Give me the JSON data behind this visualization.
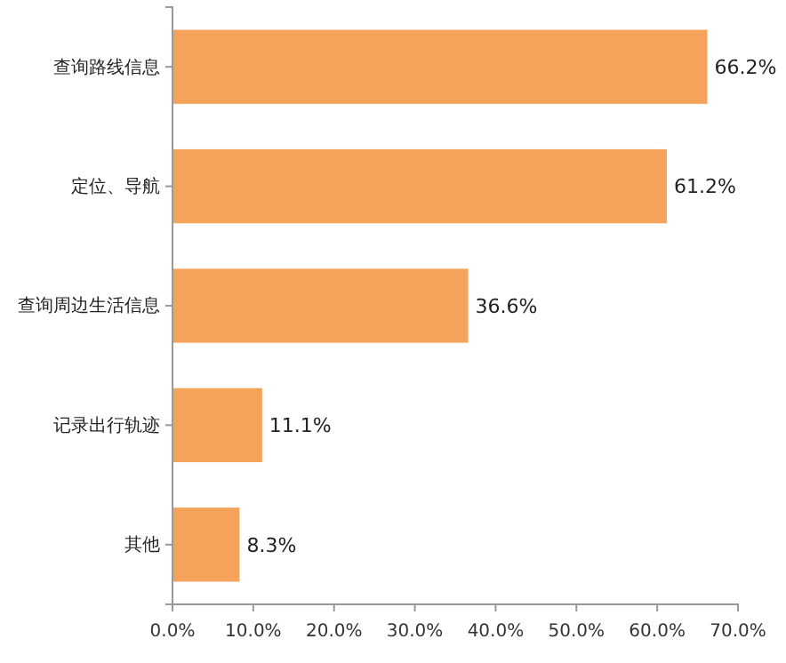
{
  "chart_data": {
    "type": "bar",
    "orientation": "horizontal",
    "categories": [
      "查询路线信息",
      "定位、导航",
      "查询周边生活信息",
      "记录出行轨迹",
      "其他"
    ],
    "values": [
      66.2,
      61.2,
      36.6,
      11.1,
      8.3
    ],
    "value_labels": [
      "66.2%",
      "61.2%",
      "36.6%",
      "11.1%",
      "8.3%"
    ],
    "color": "#f5a25a",
    "xlim": [
      0,
      70
    ],
    "xticks": [
      {
        "value": 0,
        "label": "0.0%"
      },
      {
        "value": 10,
        "label": "10.0%"
      },
      {
        "value": 20,
        "label": "20.0%"
      },
      {
        "value": 30,
        "label": "30.0%"
      },
      {
        "value": 40,
        "label": "40.0%"
      },
      {
        "value": 50,
        "label": "50.0%"
      },
      {
        "value": 60,
        "label": "60.0%"
      },
      {
        "value": 70,
        "label": "70.0%"
      }
    ],
    "grid": false
  }
}
